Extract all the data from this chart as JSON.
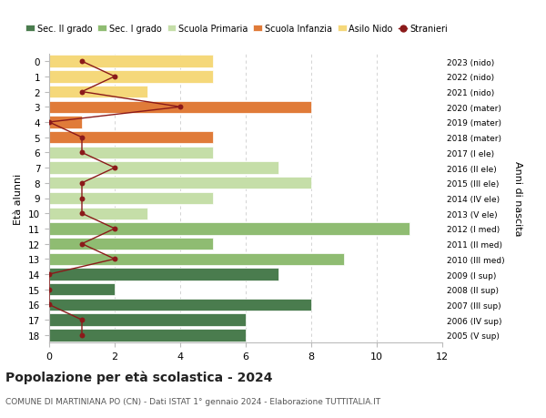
{
  "ages": [
    18,
    17,
    16,
    15,
    14,
    13,
    12,
    11,
    10,
    9,
    8,
    7,
    6,
    5,
    4,
    3,
    2,
    1,
    0
  ],
  "years": [
    "2005 (V sup)",
    "2006 (IV sup)",
    "2007 (III sup)",
    "2008 (II sup)",
    "2009 (I sup)",
    "2010 (III med)",
    "2011 (II med)",
    "2012 (I med)",
    "2013 (V ele)",
    "2014 (IV ele)",
    "2015 (III ele)",
    "2016 (II ele)",
    "2017 (I ele)",
    "2018 (mater)",
    "2019 (mater)",
    "2020 (mater)",
    "2021 (nido)",
    "2022 (nido)",
    "2023 (nido)"
  ],
  "bar_values": [
    6,
    6,
    8,
    2,
    7,
    9,
    5,
    11,
    3,
    5,
    8,
    7,
    5,
    5,
    1,
    8,
    3,
    5,
    5
  ],
  "bar_colors": [
    "#4a7c4e",
    "#4a7c4e",
    "#4a7c4e",
    "#4a7c4e",
    "#4a7c4e",
    "#8fbc72",
    "#8fbc72",
    "#8fbc72",
    "#c5dea8",
    "#c5dea8",
    "#c5dea8",
    "#c5dea8",
    "#c5dea8",
    "#e07b39",
    "#e07b39",
    "#e07b39",
    "#f5d87a",
    "#f5d87a",
    "#f5d87a"
  ],
  "stranieri_values": [
    1,
    1,
    0,
    0,
    0,
    2,
    1,
    2,
    1,
    1,
    1,
    2,
    1,
    1,
    0,
    4,
    1,
    2,
    1
  ],
  "stranieri_color": "#8b1a1a",
  "legend_labels": [
    "Sec. II grado",
    "Sec. I grado",
    "Scuola Primaria",
    "Scuola Infanzia",
    "Asilo Nido",
    "Stranieri"
  ],
  "legend_colors": [
    "#4a7c4e",
    "#8fbc72",
    "#c5dea8",
    "#e07b39",
    "#f5d87a",
    "#8b1a1a"
  ],
  "title": "Popolazione per età scolastica - 2024",
  "subtitle": "COMUNE DI MARTINIANA PO (CN) - Dati ISTAT 1° gennaio 2024 - Elaborazione TUTTITALIA.IT",
  "ylabel_left": "Età alunni",
  "ylabel_right": "Anni di nascita",
  "xlim": [
    0,
    12
  ],
  "ylim_top": 18.5,
  "ylim_bottom": -0.5,
  "background_color": "#ffffff",
  "grid_color": "#cccccc"
}
